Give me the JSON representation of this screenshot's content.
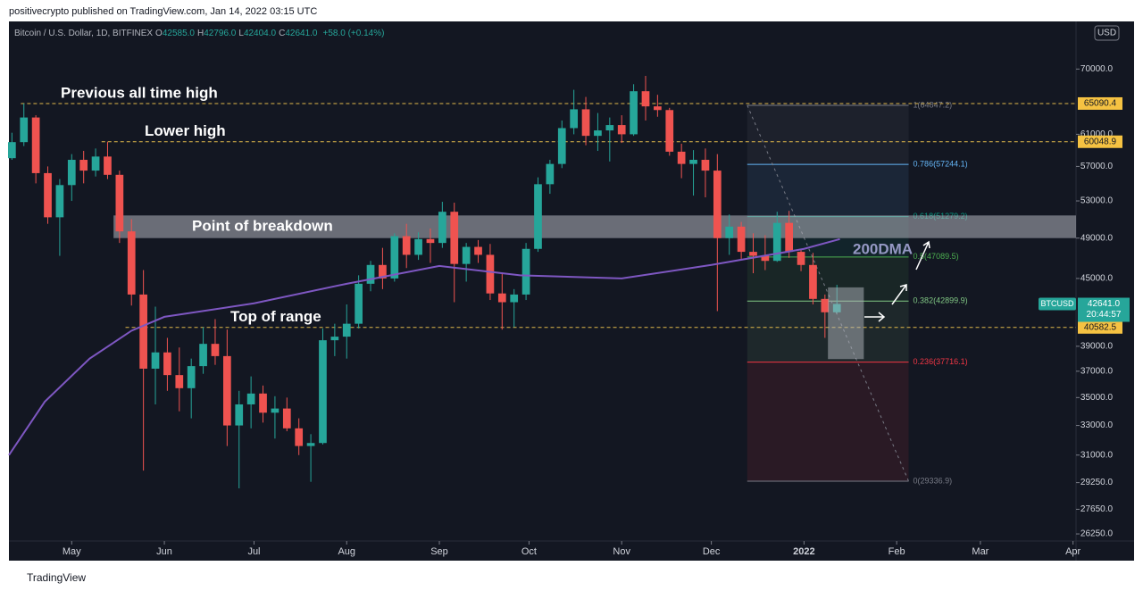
{
  "header": {
    "text": "positivecrypto published on TradingView.com, Jan 14, 2022 03:15 UTC"
  },
  "legend": {
    "symbol": "Bitcoin / U.S. Dollar, 1D, BITFINEX",
    "ohlc": [
      {
        "key": "O",
        "value": "42585.0"
      },
      {
        "key": "H",
        "value": "42796.0"
      },
      {
        "key": "L",
        "value": "42404.0"
      },
      {
        "key": "C",
        "value": "42641.0"
      }
    ],
    "change": "+58.0 (+0.14%)"
  },
  "footer": {
    "brand": "TradingView"
  },
  "chart_data": {
    "type": "candlestick",
    "ylog": true,
    "ylim": [
      25860,
      77400
    ],
    "xlim": [
      99,
      456
    ],
    "currency": "USD",
    "yticks": [
      {
        "value": 70000,
        "label": "70000.0"
      },
      {
        "value": 61000,
        "label": "61000.0"
      },
      {
        "value": 57000,
        "label": "57000.0"
      },
      {
        "value": 53000,
        "label": "53000.0"
      },
      {
        "value": 49000,
        "label": "49000.0"
      },
      {
        "value": 45000,
        "label": "45000.0"
      },
      {
        "value": 39000,
        "label": "39000.0"
      },
      {
        "value": 37000,
        "label": "37000.0"
      },
      {
        "value": 35000,
        "label": "35000.0"
      },
      {
        "value": 33000,
        "label": "33000.0"
      },
      {
        "value": 31000,
        "label": "31000.0"
      },
      {
        "value": 29250,
        "label": "29250.0"
      },
      {
        "value": 27650,
        "label": "27650.0"
      },
      {
        "value": 26250,
        "label": "26250.0"
      }
    ],
    "xticks": [
      {
        "value": 120,
        "label": "May"
      },
      {
        "value": 151,
        "label": "Jun"
      },
      {
        "value": 181,
        "label": "Jul"
      },
      {
        "value": 212,
        "label": "Aug"
      },
      {
        "value": 243,
        "label": "Sep"
      },
      {
        "value": 273,
        "label": "Oct"
      },
      {
        "value": 304,
        "label": "Nov"
      },
      {
        "value": 334,
        "label": "Dec"
      },
      {
        "value": 365,
        "label": "2022"
      },
      {
        "value": 396,
        "label": "Feb"
      },
      {
        "value": 424,
        "label": "Mar"
      },
      {
        "value": 455,
        "label": "Apr"
      }
    ],
    "up_color": "#26a69a",
    "down_color": "#ef5350",
    "x": [
      100,
      104,
      108,
      112,
      116,
      120,
      124,
      128,
      132,
      136,
      140,
      144,
      148,
      152,
      156,
      160,
      164,
      168,
      172,
      176,
      180,
      184,
      188,
      192,
      196,
      200,
      204,
      208,
      212,
      216,
      220,
      224,
      228,
      232,
      236,
      240,
      244,
      248,
      252,
      256,
      260,
      264,
      268,
      272,
      276,
      280,
      284,
      288,
      292,
      296,
      300,
      304,
      308,
      312,
      316,
      320,
      324,
      328,
      332,
      336,
      340,
      344,
      348,
      352,
      356,
      360,
      364,
      368,
      372,
      376
    ],
    "open": [
      58000,
      60000,
      63200,
      56200,
      51200,
      54800,
      57800,
      56500,
      58200,
      56000,
      49700,
      43500,
      37200,
      38500,
      36700,
      35700,
      37400,
      39200,
      38200,
      33000,
      34500,
      35300,
      33900,
      34200,
      32800,
      31600,
      31800,
      39500,
      39800,
      40900,
      44500,
      46300,
      45000,
      49200,
      47300,
      48900,
      48500,
      51800,
      46400,
      48100,
      47300,
      43600,
      42800,
      43500,
      47900,
      54900,
      57300,
      61800,
      64300,
      60800,
      61500,
      62200,
      61000,
      66800,
      64700,
      64200,
      58800,
      57300,
      57800,
      56500,
      49000,
      50200,
      47600,
      47200,
      46700,
      50600,
      47600,
      46300,
      43100,
      41900
    ],
    "high": [
      61200,
      65090,
      63500,
      57000,
      55500,
      58500,
      58900,
      59200,
      60048,
      56500,
      51000,
      45800,
      42400,
      39700,
      38900,
      38000,
      40600,
      41300,
      40400,
      35500,
      36600,
      35900,
      35100,
      35000,
      33500,
      32400,
      40500,
      40900,
      42600,
      45300,
      46700,
      48000,
      49500,
      50500,
      49600,
      50000,
      52900,
      52800,
      48500,
      48800,
      48400,
      45500,
      44000,
      48500,
      55700,
      57800,
      62800,
      67000,
      66000,
      63800,
      63200,
      63500,
      67800,
      69000,
      66300,
      64500,
      59800,
      59000,
      59200,
      58500,
      51500,
      50700,
      49500,
      49300,
      51800,
      51900,
      47900,
      47500,
      43500,
      44400
    ],
    "low": [
      57800,
      59500,
      55000,
      50500,
      47200,
      53000,
      55000,
      55800,
      55500,
      48500,
      42500,
      30000,
      34500,
      35500,
      34000,
      33500,
      36800,
      37500,
      31600,
      28900,
      32800,
      33200,
      32100,
      32600,
      31000,
      29300,
      31700,
      38200,
      38000,
      40500,
      43800,
      44000,
      44700,
      46000,
      46800,
      46500,
      48000,
      42800,
      44700,
      46500,
      43000,
      40400,
      40600,
      43000,
      47600,
      53800,
      56800,
      61000,
      59600,
      58900,
      57600,
      59900,
      60800,
      62800,
      63300,
      58300,
      55600,
      53600,
      53400,
      42000,
      47300,
      46900,
      45500,
      45800,
      46600,
      47000,
      45700,
      42600,
      39700,
      41800
    ],
    "close": [
      60000,
      63200,
      56200,
      51200,
      54800,
      57800,
      56500,
      58200,
      56000,
      49700,
      43500,
      37200,
      38500,
      36700,
      35700,
      37400,
      39200,
      38200,
      33000,
      34500,
      35300,
      33900,
      34200,
      32800,
      31600,
      31800,
      39500,
      39800,
      40900,
      44500,
      46300,
      45000,
      49200,
      47300,
      48900,
      48500,
      51800,
      46400,
      48100,
      47300,
      43600,
      42800,
      43500,
      47900,
      54900,
      57300,
      61800,
      64300,
      60800,
      61500,
      62200,
      61000,
      66800,
      64700,
      64200,
      58800,
      57300,
      57800,
      56500,
      49000,
      50200,
      47600,
      47200,
      46700,
      50600,
      47600,
      46300,
      43100,
      41900,
      42641
    ],
    "ma": {
      "name": "200DMA",
      "color": "#7e57c2",
      "x": [
        99,
        111,
        126,
        140,
        151,
        181,
        212,
        243,
        270,
        304,
        334,
        365,
        377
      ],
      "values": [
        31000,
        34700,
        38000,
        40300,
        41500,
        42700,
        44500,
        46200,
        45300,
        45000,
        46300,
        47900,
        48900
      ]
    },
    "price_badge": {
      "symbol": "BTCUSD",
      "value": 42641,
      "label": "42641.0",
      "countdown": "20:44:57",
      "color": "#26a69a"
    },
    "levels": [
      {
        "value": 65090.4,
        "start": 103,
        "text": "Previous all time high"
      },
      {
        "value": 60048.9,
        "start": 130,
        "text": "Lower high"
      },
      {
        "value": 40582.5,
        "start": 138,
        "text": "Top of range"
      }
    ],
    "zone": {
      "low": 49000,
      "high": 51400,
      "start": 134,
      "end": 456,
      "text": "Point of breakdown"
    },
    "box": {
      "low": 37960,
      "high": 44160,
      "start": 373,
      "end": 385
    },
    "fib": {
      "start": 346,
      "end": 400,
      "levels": [
        {
          "value": 64847.2,
          "label": "1(64847.2)",
          "color": "#787b86"
        },
        {
          "value": 57244.1,
          "label": "0.786(57244.1)",
          "color": "#64b5f6"
        },
        {
          "value": 51279.2,
          "label": "0.618(51279.2)",
          "color": "#089981"
        },
        {
          "value": 47089.5,
          "label": "0.5(47089.5)",
          "color": "#4caf50"
        },
        {
          "value": 42899.9,
          "label": "0.382(42899.9)",
          "color": "#81c784"
        },
        {
          "value": 37716.1,
          "label": "0.236(37716.1)",
          "color": "#f23645"
        },
        {
          "value": 29336.9,
          "label": "0(29336.9)",
          "color": "#787b86"
        }
      ]
    }
  }
}
